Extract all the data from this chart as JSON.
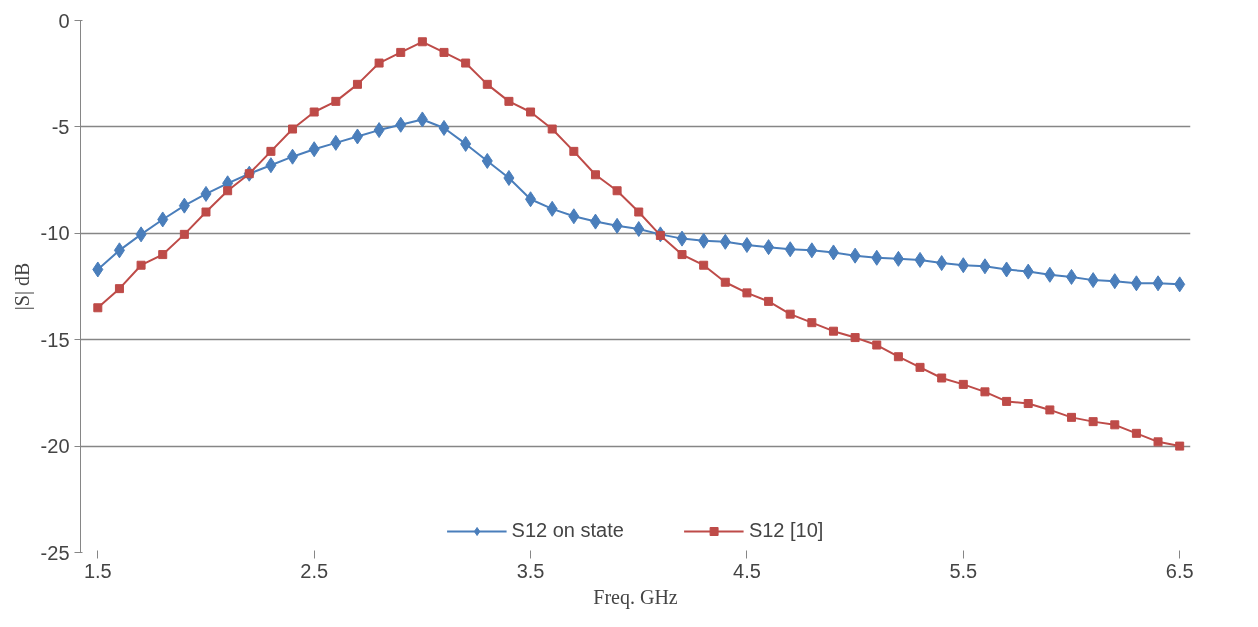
{
  "chart_data": {
    "type": "line",
    "xlabel": "Freq. GHz",
    "ylabel": "|S| dB",
    "x": [
      1.5,
      1.6,
      1.7,
      1.8,
      1.9,
      2.0,
      2.1,
      2.2,
      2.3,
      2.4,
      2.5,
      2.6,
      2.7,
      2.8,
      2.9,
      3.0,
      3.1,
      3.2,
      3.3,
      3.4,
      3.5,
      3.6,
      3.7,
      3.8,
      3.9,
      4.0,
      4.1,
      4.2,
      4.3,
      4.4,
      4.5,
      4.6,
      4.7,
      4.8,
      4.9,
      5.0,
      5.1,
      5.2,
      5.3,
      5.4,
      5.5,
      5.6,
      5.7,
      5.8,
      5.9,
      6.0,
      6.1,
      6.2,
      6.3,
      6.4,
      6.5
    ],
    "series": [
      {
        "name": "S12 on state",
        "color": "#4a7ebb",
        "marker": "diamond",
        "values": [
          -11.7,
          -10.8,
          -10.05,
          -9.35,
          -8.7,
          -8.15,
          -7.65,
          -7.2,
          -6.8,
          -6.4,
          -6.05,
          -5.75,
          -5.45,
          -5.15,
          -4.9,
          -4.65,
          -5.05,
          -5.8,
          -6.6,
          -7.4,
          -8.4,
          -8.85,
          -9.2,
          -9.45,
          -9.65,
          -9.8,
          -10.05,
          -10.25,
          -10.35,
          -10.4,
          -10.55,
          -10.65,
          -10.75,
          -10.8,
          -10.9,
          -11.05,
          -11.15,
          -11.2,
          -11.25,
          -11.4,
          -11.5,
          -11.55,
          -11.7,
          -11.8,
          -11.95,
          -12.05,
          -12.2,
          -12.25,
          -12.35,
          -12.35,
          -12.4
        ]
      },
      {
        "name": "S12 [10]",
        "color": "#be4b48",
        "marker": "square",
        "values": [
          -13.5,
          -12.6,
          -11.5,
          -11.0,
          -10.05,
          -9.0,
          -8.0,
          -7.2,
          -6.15,
          -5.1,
          -4.3,
          -3.8,
          -3.0,
          -2.0,
          -1.5,
          -1.0,
          -1.5,
          -2.0,
          -3.0,
          -3.8,
          -4.3,
          -5.1,
          -6.15,
          -7.25,
          -8.0,
          -9.0,
          -10.1,
          -11.0,
          -11.5,
          -12.3,
          -12.8,
          -13.2,
          -13.8,
          -14.2,
          -14.6,
          -14.9,
          -15.25,
          -15.8,
          -16.3,
          -16.8,
          -17.1,
          -17.45,
          -17.9,
          -18.0,
          -18.3,
          -18.65,
          -18.85,
          -19.0,
          -19.4,
          -19.8,
          -20.0
        ]
      }
    ],
    "xlim": [
      1.42,
      6.55
    ],
    "xticks": [
      1.5,
      2.5,
      3.5,
      4.5,
      5.5,
      6.5
    ],
    "ylim": [
      -25,
      0
    ],
    "yticks": [
      -25,
      -20,
      -15,
      -10,
      -5,
      0
    ],
    "grid": "y",
    "legend": "bottom",
    "line_style": "solid"
  }
}
